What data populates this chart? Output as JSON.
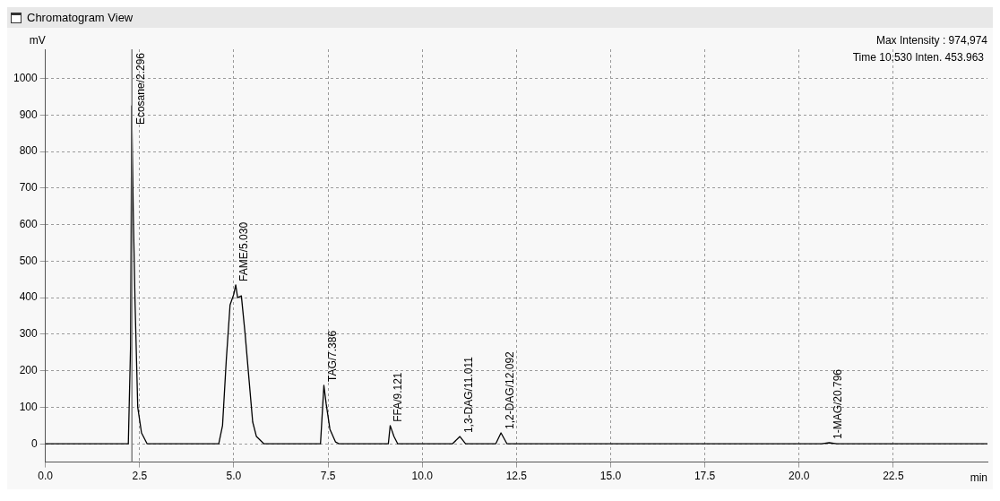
{
  "chart_data": {
    "type": "line",
    "title": "Chromatogram View",
    "xlabel": "min",
    "ylabel": "mV",
    "x": [
      0,
      2.2,
      2.26,
      2.29,
      2.33,
      2.38,
      2.45,
      2.55,
      2.7,
      4.6,
      4.7,
      4.8,
      4.9,
      5.0,
      5.05,
      5.1,
      5.2,
      5.3,
      5.4,
      5.5,
      5.6,
      5.8,
      7.3,
      7.39,
      7.45,
      7.55,
      7.7,
      7.8,
      9.1,
      9.15,
      9.25,
      9.35,
      10.8,
      11.0,
      11.15,
      11.95,
      12.09,
      12.25,
      20.6,
      20.8,
      21.0,
      25
    ],
    "series": [
      {
        "color": "#000000",
        "values": [
          0,
          0,
          270,
          925,
          640,
          380,
          100,
          30,
          0,
          0,
          50,
          230,
          380,
          410,
          435,
          400,
          405,
          300,
          180,
          60,
          20,
          0,
          0,
          160,
          110,
          40,
          5,
          0,
          0,
          50,
          20,
          0,
          0,
          20,
          0,
          0,
          30,
          0,
          0,
          3,
          0,
          0
        ]
      }
    ],
    "xlim": [
      0,
      25
    ],
    "xticks": [
      {
        "value": 0,
        "label": "0.0"
      },
      2.5,
      {
        "value": 5,
        "label": "5.0"
      },
      7.5,
      {
        "value": 10,
        "label": "10.0"
      },
      12.5,
      {
        "value": 15,
        "label": "15.0"
      },
      17.5,
      {
        "value": 20,
        "label": "20.0"
      },
      22.5
    ],
    "ylim": [
      -50,
      1080
    ],
    "yticks": [
      0,
      100,
      200,
      300,
      400,
      500,
      600,
      700,
      800,
      900,
      1000
    ],
    "grid": true,
    "legend": false,
    "marker": "none",
    "line_style": "solid",
    "ref_lines": [
      {
        "axis": "x",
        "value": 2.296,
        "color": "#808080"
      }
    ],
    "annotations": [
      "Max Intensity : 974,974",
      "Time 10.530 Inten. 453.963",
      {
        "text": "Ecosane/2.296",
        "x": 2.296,
        "y": 925
      },
      {
        "text": "FAME/5.030",
        "x": 5.03,
        "y": 435
      },
      {
        "text": "TAG/7.386",
        "x": 7.386,
        "y": 160
      },
      {
        "text": "FFA/9.121",
        "x": 9.121,
        "y": 50
      },
      {
        "text": "1,3-DAG/11.011",
        "x": 11.011,
        "y": 20
      },
      {
        "text": "1,2-DAG/12.092",
        "x": 12.092,
        "y": 30
      },
      {
        "text": "1-MAG/20.796",
        "x": 20.796,
        "y": 3
      }
    ]
  }
}
